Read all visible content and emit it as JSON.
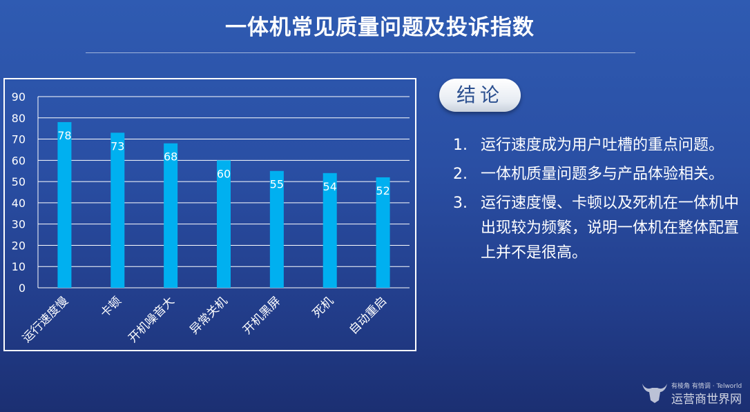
{
  "title": "一体机常见质量问题及投诉指数",
  "conclusion": {
    "label": "结论",
    "points": [
      {
        "num": "1.",
        "text": "运行速度成为用户吐槽的重点问题。"
      },
      {
        "num": "2.",
        "text": "一体机质量问题多与产品体验相关。"
      },
      {
        "num": "3.",
        "text": "运行速度慢、卡顿以及死机在一体机中出现较为频繁，说明一体机在整体配置上并不是很高。"
      }
    ]
  },
  "logo": {
    "tagline": "有棱角 有情调 · Telworld",
    "name": "运营商世界网"
  },
  "colors": {
    "bar": "#00b0f0",
    "frame": "#ffffff",
    "gridline": "#ffffff"
  },
  "chart_data": {
    "type": "bar",
    "categories": [
      "运行速度慢",
      "卡顿",
      "开机噪音大",
      "异常关机",
      "开机黑屏",
      "死机",
      "自动重启"
    ],
    "values": [
      78,
      73,
      68,
      60,
      55,
      54,
      52
    ],
    "ylim": [
      0,
      90
    ],
    "yticks": [
      0,
      10,
      20,
      30,
      40,
      50,
      60,
      70,
      80,
      90
    ],
    "grid": true,
    "data_labels": true,
    "x_label_rotation": "diagonal"
  }
}
